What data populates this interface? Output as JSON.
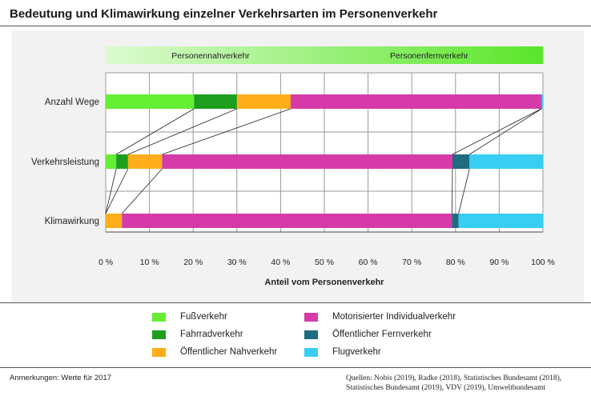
{
  "title": "Bedeutung und Klimawirkung einzelner Verkehrsarten im Personenverkehr",
  "header_band": {
    "left_label": "Personennahverkehr",
    "right_label": "Personenfernverkehr"
  },
  "chart_data": {
    "type": "bar",
    "orientation": "horizontal",
    "stacked": true,
    "xlabel": "Anteil vom Personenverkehr",
    "xlim": [
      0,
      100
    ],
    "tick_labels": [
      "0 %",
      "10 %",
      "20 %",
      "30 %",
      "40 %",
      "50 %",
      "60 %",
      "70 %",
      "80 %",
      "90 %",
      "100 %"
    ],
    "categories": [
      "Anzahl Wege",
      "Verkehrsleistung",
      "Klimawirkung"
    ],
    "series": [
      {
        "name": "Fußverkehr",
        "color": "#66ee33",
        "values": [
          20.2,
          2.4,
          0.0
        ]
      },
      {
        "name": "Fahrradverkehr",
        "color": "#1e9e1e",
        "values": [
          9.8,
          2.7,
          0.0
        ]
      },
      {
        "name": "Öffentlicher Nahverkehr",
        "color": "#ffae1a",
        "values": [
          12.3,
          7.8,
          3.7
        ]
      },
      {
        "name": "Motorisierter Individualverkehr",
        "color": "#d63aa8",
        "values": [
          57.3,
          66.4,
          75.5
        ]
      },
      {
        "name": "Öffentlicher Fernverkehr",
        "color": "#1f6b80",
        "values": [
          0.1,
          3.9,
          1.5
        ]
      },
      {
        "name": "Flugverkehr",
        "color": "#38cdf2",
        "values": [
          0.3,
          16.8,
          19.3
        ]
      }
    ]
  },
  "legend": [
    {
      "label": "Fußverkehr",
      "color": "#66ee33"
    },
    {
      "label": "Fahrradverkehr",
      "color": "#1e9e1e"
    },
    {
      "label": "Öffentlicher Nahverkehr",
      "color": "#ffae1a"
    },
    {
      "label": "Motorisierter Individualverkehr",
      "color": "#d63aa8"
    },
    {
      "label": "Öffentlicher Fernverkehr",
      "color": "#1f6b80"
    },
    {
      "label": "Flugverkehr",
      "color": "#38cdf2"
    }
  ],
  "footer": {
    "note": "Anmerkungen: Werte für 2017",
    "sources": "Quellen: Nobis (2019), Radke (2018), Statistisches Bundesamt (2018), Statistisches Bundesamt (2019), VDV (2019), Umweltbundesamt"
  }
}
